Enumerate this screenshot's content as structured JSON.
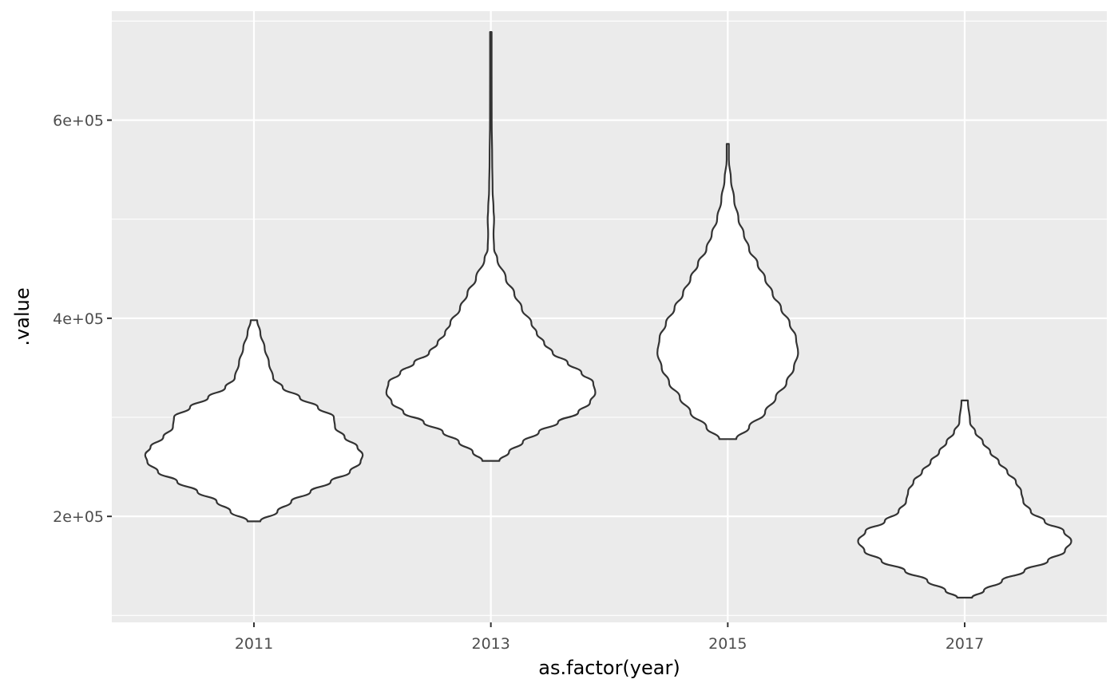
{
  "chart_data": {
    "type": "violin",
    "xlabel": "as.factor(year)",
    "ylabel": ".value",
    "categories": [
      "2011",
      "2013",
      "2015",
      "2017"
    ],
    "ylim": [
      93000,
      710000
    ],
    "y_ticks": [
      200000,
      400000,
      600000
    ],
    "y_tick_labels": [
      "2e+05",
      "4e+05",
      "6e+05"
    ],
    "y_minor_ticks": [
      100000,
      300000,
      500000,
      700000
    ],
    "grid": true,
    "panel_background": "#ebebeb",
    "grid_color": "#ffffff",
    "violin_fill": "#ffffff",
    "violin_outline": "#333333",
    "violins": [
      {
        "category": "2011",
        "min": 195000,
        "max": 398000,
        "profile": [
          [
            195000,
            0.06
          ],
          [
            205000,
            0.22
          ],
          [
            215000,
            0.35
          ],
          [
            225000,
            0.53
          ],
          [
            235000,
            0.72
          ],
          [
            245000,
            0.9
          ],
          [
            255000,
            1.0
          ],
          [
            262000,
            1.02
          ],
          [
            270000,
            0.97
          ],
          [
            280000,
            0.85
          ],
          [
            290000,
            0.76
          ],
          [
            300000,
            0.75
          ],
          [
            310000,
            0.6
          ],
          [
            320000,
            0.43
          ],
          [
            330000,
            0.27
          ],
          [
            340000,
            0.18
          ],
          [
            355000,
            0.14
          ],
          [
            370000,
            0.1
          ],
          [
            385000,
            0.06
          ],
          [
            398000,
            0.03
          ]
        ]
      },
      {
        "category": "2013",
        "min": 256000,
        "max": 689000,
        "profile": [
          [
            256000,
            0.08
          ],
          [
            265000,
            0.17
          ],
          [
            275000,
            0.3
          ],
          [
            285000,
            0.45
          ],
          [
            295000,
            0.63
          ],
          [
            305000,
            0.82
          ],
          [
            315000,
            0.93
          ],
          [
            325000,
            0.98
          ],
          [
            335000,
            0.96
          ],
          [
            345000,
            0.85
          ],
          [
            355000,
            0.72
          ],
          [
            365000,
            0.58
          ],
          [
            375000,
            0.5
          ],
          [
            385000,
            0.43
          ],
          [
            395000,
            0.38
          ],
          [
            410000,
            0.29
          ],
          [
            425000,
            0.22
          ],
          [
            440000,
            0.14
          ],
          [
            460000,
            0.06
          ],
          [
            470000,
            0.03
          ],
          [
            485000,
            0.025
          ],
          [
            500000,
            0.03
          ],
          [
            510000,
            0.025
          ],
          [
            530000,
            0.016
          ],
          [
            560000,
            0.012
          ],
          [
            600000,
            0.008
          ],
          [
            650000,
            0.007
          ],
          [
            689000,
            0.007
          ]
        ]
      },
      {
        "category": "2015",
        "min": 278000,
        "max": 576000,
        "profile": [
          [
            278000,
            0.08
          ],
          [
            290000,
            0.2
          ],
          [
            305000,
            0.35
          ],
          [
            320000,
            0.45
          ],
          [
            335000,
            0.55
          ],
          [
            350000,
            0.62
          ],
          [
            365000,
            0.66
          ],
          [
            380000,
            0.64
          ],
          [
            395000,
            0.58
          ],
          [
            410000,
            0.5
          ],
          [
            425000,
            0.42
          ],
          [
            440000,
            0.35
          ],
          [
            455000,
            0.28
          ],
          [
            470000,
            0.2
          ],
          [
            485000,
            0.15
          ],
          [
            500000,
            0.1
          ],
          [
            520000,
            0.06
          ],
          [
            540000,
            0.03
          ],
          [
            560000,
            0.01
          ],
          [
            576000,
            0.01
          ]
        ]
      },
      {
        "category": "2017",
        "min": 118000,
        "max": 317000,
        "profile": [
          [
            118000,
            0.07
          ],
          [
            125000,
            0.18
          ],
          [
            135000,
            0.35
          ],
          [
            145000,
            0.56
          ],
          [
            155000,
            0.78
          ],
          [
            165000,
            0.94
          ],
          [
            175000,
            1.0
          ],
          [
            185000,
            0.93
          ],
          [
            195000,
            0.75
          ],
          [
            205000,
            0.62
          ],
          [
            215000,
            0.55
          ],
          [
            225000,
            0.53
          ],
          [
            235000,
            0.48
          ],
          [
            245000,
            0.4
          ],
          [
            255000,
            0.32
          ],
          [
            265000,
            0.24
          ],
          [
            275000,
            0.17
          ],
          [
            285000,
            0.1
          ],
          [
            295000,
            0.05
          ],
          [
            317000,
            0.03
          ]
        ]
      }
    ]
  }
}
